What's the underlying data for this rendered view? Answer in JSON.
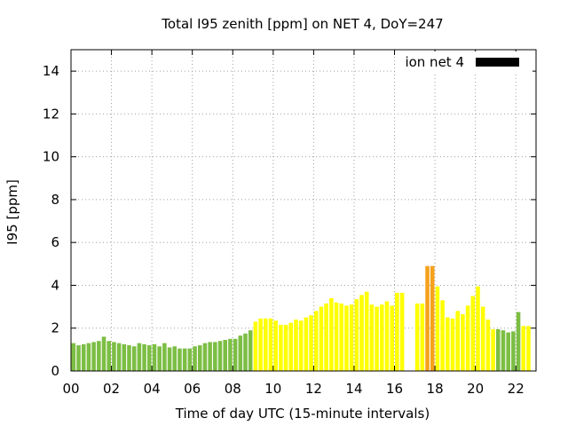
{
  "chart_data": {
    "type": "bar",
    "title": "Total I95 zenith [ppm] on NET 4, DoY=247",
    "xlabel": "Time of day UTC (15-minute intervals)",
    "ylabel": "I95 [ppm]",
    "xlim": [
      0,
      23
    ],
    "ylim": [
      0,
      15
    ],
    "x_ticks": [
      {
        "value": 0,
        "label": "00"
      },
      {
        "value": 2,
        "label": "02"
      },
      {
        "value": 4,
        "label": "04"
      },
      {
        "value": 6,
        "label": "06"
      },
      {
        "value": 8,
        "label": "08"
      },
      {
        "value": 10,
        "label": "10"
      },
      {
        "value": 12,
        "label": "12"
      },
      {
        "value": 14,
        "label": "14"
      },
      {
        "value": 16,
        "label": "16"
      },
      {
        "value": 18,
        "label": "18"
      },
      {
        "value": 20,
        "label": "20"
      },
      {
        "value": 22,
        "label": "22"
      }
    ],
    "y_ticks": [
      0,
      2,
      4,
      6,
      8,
      10,
      12,
      14
    ],
    "grid": true,
    "legend": {
      "label": "ion net 4",
      "color": "#000000",
      "placement": "top-right"
    },
    "colors": {
      "green": "#7CBE44",
      "yellow": "#FFFF00",
      "orange": "#F5A11C"
    },
    "bar_width_hours": 0.2,
    "x": [
      0.125,
      0.375,
      0.625,
      0.875,
      1.125,
      1.375,
      1.625,
      1.875,
      2.125,
      2.375,
      2.625,
      2.875,
      3.125,
      3.375,
      3.625,
      3.875,
      4.125,
      4.375,
      4.625,
      4.875,
      5.125,
      5.375,
      5.625,
      5.875,
      6.125,
      6.375,
      6.625,
      6.875,
      7.125,
      7.375,
      7.625,
      7.875,
      8.125,
      8.375,
      8.625,
      8.875,
      9.125,
      9.375,
      9.625,
      9.875,
      10.125,
      10.375,
      10.625,
      10.875,
      11.125,
      11.375,
      11.625,
      11.875,
      12.125,
      12.375,
      12.625,
      12.875,
      13.125,
      13.375,
      13.625,
      13.875,
      14.125,
      14.375,
      14.625,
      14.875,
      15.125,
      15.375,
      15.625,
      15.875,
      16.125,
      16.375,
      17.125,
      17.375,
      17.625,
      17.875,
      18.125,
      18.375,
      18.625,
      18.875,
      19.125,
      19.375,
      19.625,
      19.875,
      20.125,
      20.375,
      20.625,
      20.875,
      21.125,
      21.375,
      21.625,
      21.875,
      22.125,
      22.375,
      22.625
    ],
    "values": [
      1.3,
      1.2,
      1.25,
      1.3,
      1.35,
      1.4,
      1.6,
      1.4,
      1.35,
      1.3,
      1.25,
      1.2,
      1.15,
      1.3,
      1.25,
      1.2,
      1.25,
      1.15,
      1.3,
      1.1,
      1.15,
      1.05,
      1.05,
      1.05,
      1.15,
      1.2,
      1.3,
      1.35,
      1.35,
      1.4,
      1.45,
      1.5,
      1.5,
      1.65,
      1.75,
      1.9,
      2.3,
      2.45,
      2.45,
      2.45,
      2.35,
      2.15,
      2.15,
      2.25,
      2.4,
      2.35,
      2.5,
      2.6,
      2.8,
      3.0,
      3.15,
      3.4,
      3.2,
      3.15,
      3.05,
      3.1,
      3.35,
      3.55,
      3.7,
      3.1,
      3.0,
      3.1,
      3.25,
      3.05,
      3.65,
      3.65,
      3.15,
      3.15,
      4.9,
      4.9,
      3.95,
      3.3,
      2.5,
      2.45,
      2.8,
      2.65,
      3.05,
      3.5,
      3.95,
      3.0,
      2.4,
      1.95,
      1.95,
      1.9,
      1.8,
      1.85,
      2.75,
      2.1,
      2.1
    ],
    "bar_colors": [
      "green",
      "green",
      "green",
      "green",
      "green",
      "green",
      "green",
      "green",
      "green",
      "green",
      "green",
      "green",
      "green",
      "green",
      "green",
      "green",
      "green",
      "green",
      "green",
      "green",
      "green",
      "green",
      "green",
      "green",
      "green",
      "green",
      "green",
      "green",
      "green",
      "green",
      "green",
      "green",
      "green",
      "green",
      "green",
      "green",
      "yellow",
      "yellow",
      "yellow",
      "yellow",
      "yellow",
      "yellow",
      "yellow",
      "yellow",
      "yellow",
      "yellow",
      "yellow",
      "yellow",
      "yellow",
      "yellow",
      "yellow",
      "yellow",
      "yellow",
      "yellow",
      "yellow",
      "yellow",
      "yellow",
      "yellow",
      "yellow",
      "yellow",
      "yellow",
      "yellow",
      "yellow",
      "yellow",
      "yellow",
      "yellow",
      "yellow",
      "yellow",
      "orange",
      "orange",
      "yellow",
      "yellow",
      "yellow",
      "yellow",
      "yellow",
      "yellow",
      "yellow",
      "yellow",
      "yellow",
      "yellow",
      "yellow",
      "yellow",
      "green",
      "green",
      "green",
      "green",
      "green",
      "yellow",
      "yellow"
    ]
  }
}
